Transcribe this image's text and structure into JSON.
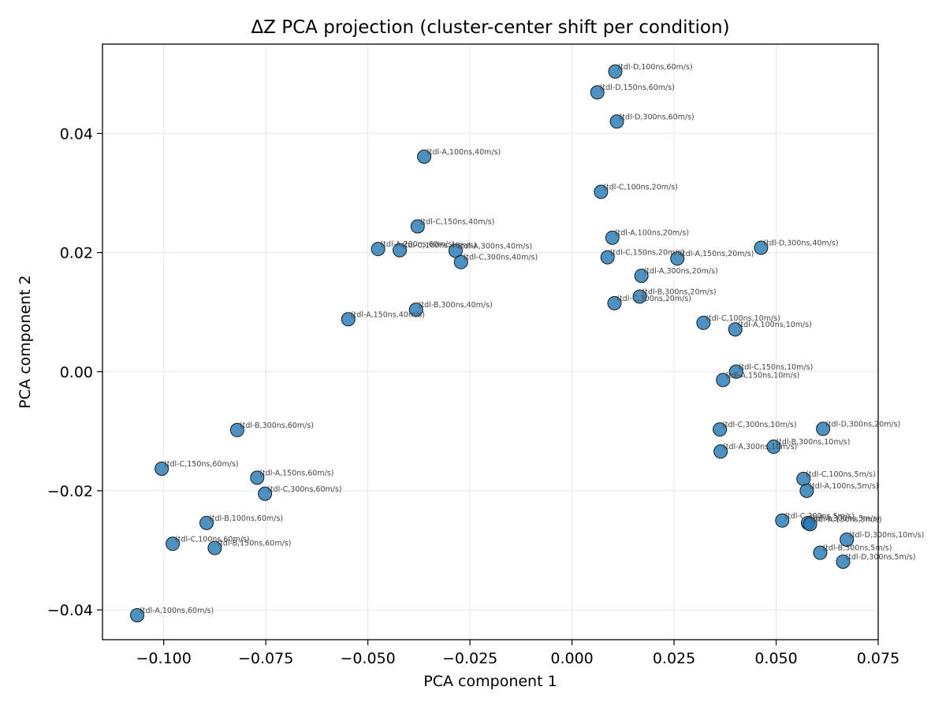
{
  "chart_data": {
    "type": "scatter",
    "title": "ΔZ PCA projection (cluster-center shift per condition)",
    "xlabel": "PCA component 1",
    "ylabel": "PCA component 2",
    "xlim": [
      -0.115,
      0.075
    ],
    "ylim": [
      -0.045,
      0.055
    ],
    "xticks": [
      -0.1,
      -0.075,
      -0.05,
      -0.025,
      0.0,
      0.025,
      0.05,
      0.075
    ],
    "xtick_labels": [
      "−0.100",
      "−0.075",
      "−0.050",
      "−0.025",
      "0.000",
      "0.025",
      "0.050",
      "0.075"
    ],
    "yticks": [
      -0.04,
      -0.02,
      0.0,
      0.02,
      0.04
    ],
    "ytick_labels": [
      "−0.04",
      "−0.02",
      "0.00",
      "0.02",
      "0.04"
    ],
    "grid": true,
    "marker_color": "#1f77b4",
    "points": [
      {
        "label": "(tdl-D,100ns,60m/s)",
        "x": 0.0106,
        "y": 0.0504
      },
      {
        "label": "(tdl-D,150ns,60m/s)",
        "x": 0.0062,
        "y": 0.0469
      },
      {
        "label": "(tdl-D,300ns,60m/s)",
        "x": 0.011,
        "y": 0.042
      },
      {
        "label": "(tdl-A,100ns,40m/s)",
        "x": -0.0362,
        "y": 0.0361
      },
      {
        "label": "(tdl-C,100ns,20m/s)",
        "x": 0.0071,
        "y": 0.0302
      },
      {
        "label": "(tdl-C,150ns,40m/s)",
        "x": -0.0378,
        "y": 0.0244
      },
      {
        "label": "(tdl-A,200ns,60m/s)",
        "x": -0.0475,
        "y": 0.0206
      },
      {
        "label": "(tdl-C,100ns,40m/s)",
        "x": -0.0422,
        "y": 0.0204
      },
      {
        "label": "(tdl-A,300ns,40m/s)",
        "x": -0.0285,
        "y": 0.0203
      },
      {
        "label": "(tdl-C,300ns,40m/s)",
        "x": -0.0272,
        "y": 0.0184
      },
      {
        "label": "(tdl-A,100ns,20m/s)",
        "x": 0.0099,
        "y": 0.0225
      },
      {
        "label": "(tdl-D,300ns,40m/s)",
        "x": 0.0463,
        "y": 0.0208
      },
      {
        "label": "(tdl-C,150ns,20m/s)",
        "x": 0.0087,
        "y": 0.0192
      },
      {
        "label": "(tdl-A,150ns,20m/s)",
        "x": 0.0258,
        "y": 0.019
      },
      {
        "label": "(tdl-A,300ns,20m/s)",
        "x": 0.017,
        "y": 0.0161
      },
      {
        "label": "(tdl-B,300ns,20m/s)",
        "x": 0.0166,
        "y": 0.0126
      },
      {
        "label": "(tdl-C,300ns,20m/s)",
        "x": 0.0104,
        "y": 0.0115
      },
      {
        "label": "(tdl-B,300ns,40m/s)",
        "x": -0.0382,
        "y": 0.0104
      },
      {
        "label": "(tdl-A,150ns,40m/s)",
        "x": -0.0548,
        "y": 0.0088
      },
      {
        "label": "(tdl-C,100ns,10m/s)",
        "x": 0.0322,
        "y": 0.0082
      },
      {
        "label": "(tdl-A,100ns,10m/s)",
        "x": 0.04,
        "y": 0.0071
      },
      {
        "label": "(tdl-C,150ns,10m/s)",
        "x": 0.0402,
        "y": 0.0
      },
      {
        "label": "(tdl-A,150ns,10m/s)",
        "x": 0.037,
        "y": -0.0014
      },
      {
        "label": "(tdl-B,300ns,60m/s)",
        "x": -0.082,
        "y": -0.0098
      },
      {
        "label": "(tdl-C,300ns,10m/s)",
        "x": 0.0362,
        "y": -0.0097
      },
      {
        "label": "(tdl-D,300ns,20m/s)",
        "x": 0.0615,
        "y": -0.0096
      },
      {
        "label": "(tdl-B,300ns,10m/s)",
        "x": 0.0494,
        "y": -0.0126
      },
      {
        "label": "(tdl-A,300ns,10m/s)",
        "x": 0.0364,
        "y": -0.0134
      },
      {
        "label": "(tdl-C,150ns,60m/s)",
        "x": -0.1005,
        "y": -0.0163
      },
      {
        "label": "(tdl-A,150ns,60m/s)",
        "x": -0.0771,
        "y": -0.0178
      },
      {
        "label": "(tdl-C,100ns,5m/s)",
        "x": 0.0567,
        "y": -0.018
      },
      {
        "label": "(tdl-C,300ns,60m/s)",
        "x": -0.0752,
        "y": -0.0205
      },
      {
        "label": "(tdl-A,100ns,5m/s)",
        "x": 0.0575,
        "y": -0.02
      },
      {
        "label": "(tdl-B,100ns,60m/s)",
        "x": -0.0895,
        "y": -0.0254
      },
      {
        "label": "(tdl-C,300ns,5m/s)",
        "x": 0.0515,
        "y": -0.025
      },
      {
        "label": "(tdl-A,300ns,5m/s)",
        "x": 0.0578,
        "y": -0.0254
      },
      {
        "label": "(tdl-A,150ns,5m/s)",
        "x": 0.0583,
        "y": -0.0256
      },
      {
        "label": "(tdl-C,100ns,60m/s)",
        "x": -0.0978,
        "y": -0.0289
      },
      {
        "label": "(tdl-B,150ns,60m/s)",
        "x": -0.0875,
        "y": -0.0296
      },
      {
        "label": "(tdl-D,300ns,10m/s)",
        "x": 0.0673,
        "y": -0.0282
      },
      {
        "label": "(tdl-B,300ns,5m/s)",
        "x": 0.0608,
        "y": -0.0304
      },
      {
        "label": "(tdl-D,300ns,5m/s)",
        "x": 0.0664,
        "y": -0.0319
      },
      {
        "label": "(tdl-A,100ns,60m/s)",
        "x": -0.1065,
        "y": -0.0409
      }
    ]
  }
}
